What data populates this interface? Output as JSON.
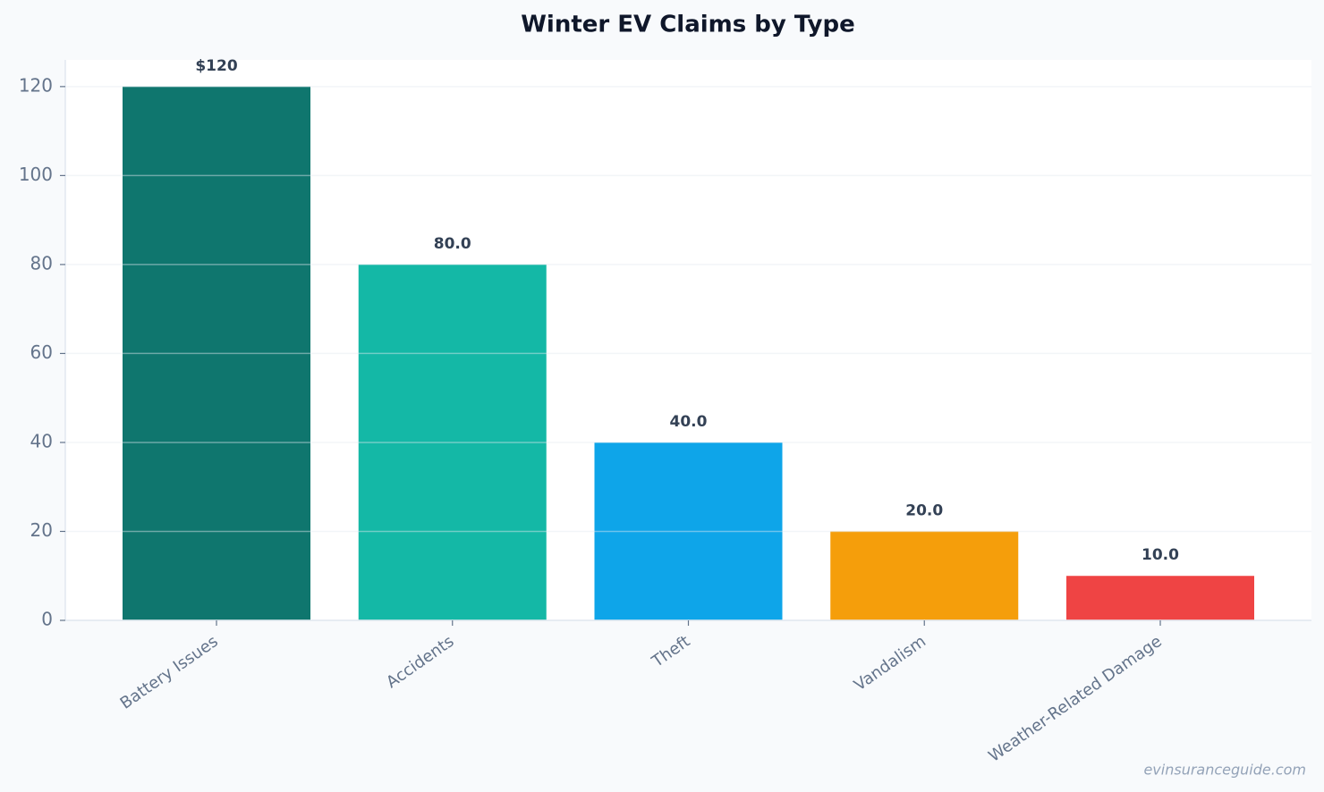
{
  "chart_data": {
    "type": "bar",
    "title": "Winter EV Claims by Type",
    "categories": [
      "Battery Issues",
      "Accidents",
      "Theft",
      "Vandalism",
      "Weather-Related Damage"
    ],
    "values": [
      120,
      80,
      40,
      20,
      10
    ],
    "value_labels": [
      "$120",
      "80.0",
      "40.0",
      "20.0",
      "10.0"
    ],
    "colors": [
      "#0f766e",
      "#14b8a6",
      "#0ea5e9",
      "#f59e0b",
      "#ef4444"
    ],
    "ylim": [
      0,
      126
    ],
    "yticks": [
      0,
      20,
      40,
      60,
      80,
      100,
      120
    ],
    "grid": true,
    "watermark": "evinsuranceguide.com"
  }
}
